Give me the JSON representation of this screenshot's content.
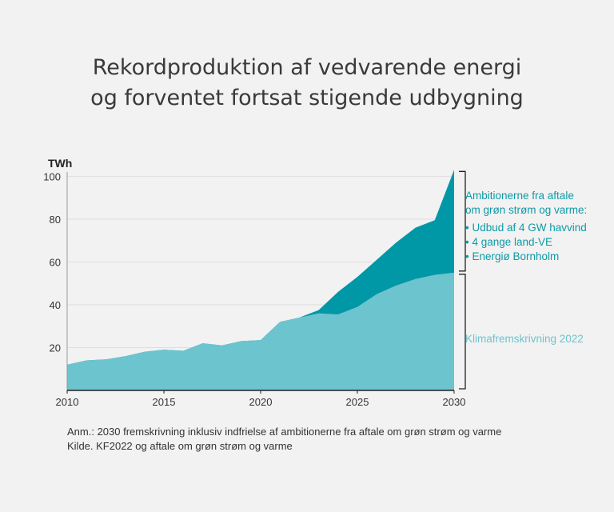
{
  "title": {
    "line1": "Rekordproduktion af vedvarende energi",
    "line2": "og forventet fortsat stigende udbygning"
  },
  "footnote": {
    "line1": "Anm.:  2030 fremskrivning inklusiv indfrielse af ambitionerne fra aftale om grøn strøm og varme",
    "line2": "Kilde. KF2022 og aftale om grøn strøm og varme"
  },
  "chart_data": {
    "type": "area",
    "ylabel": "TWh",
    "xlabel": "",
    "xlim": [
      2010,
      2030
    ],
    "ylim": [
      0,
      102
    ],
    "x_ticks": [
      "2010",
      "2015",
      "2020",
      "2025",
      "2030"
    ],
    "y_ticks": [
      "20",
      "40",
      "60",
      "80",
      "100"
    ],
    "grid": "horizontal",
    "x": [
      2010,
      2011,
      2012,
      2013,
      2014,
      2015,
      2016,
      2017,
      2018,
      2019,
      2020,
      2021,
      2022,
      2023,
      2024,
      2025,
      2026,
      2027,
      2028,
      2029,
      2030
    ],
    "series": [
      {
        "name": "Klimafremskrivning 2022",
        "color": "#6cc4cf",
        "values": [
          12,
          14,
          14.5,
          16,
          18,
          19,
          18.5,
          22,
          21,
          23,
          23.5,
          32,
          34,
          36,
          35.5,
          39,
          45,
          49,
          52,
          54,
          55
        ]
      },
      {
        "name": "Ambitionerne fra aftale om grøn strøm og varme",
        "color": "#0097a7",
        "values": [
          12,
          14,
          14.5,
          16,
          18,
          19,
          18.5,
          22,
          21,
          23,
          23.5,
          32,
          34,
          37.5,
          46,
          53,
          61,
          69,
          76,
          79.5,
          103
        ]
      }
    ],
    "annotations": {
      "upper_label_line1": "Ambitionerne fra aftale",
      "upper_label_line2": "om grøn strøm og varme:",
      "upper_items": [
        "• Udbud af 4 GW havvind",
        "• 4 gange land-VE",
        "• Energiø Bornholm"
      ],
      "lower_label": "Klimafremskrivning 2022"
    }
  }
}
